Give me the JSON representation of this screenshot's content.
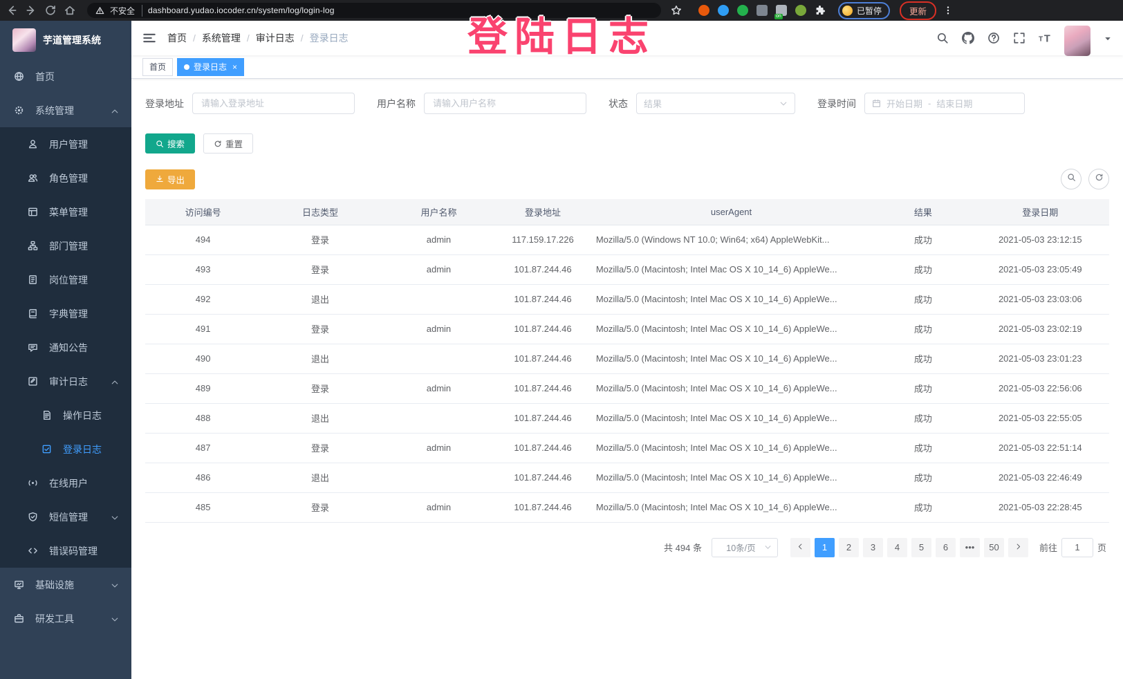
{
  "browser": {
    "security_label": "不安全",
    "url": "dashboard.yudao.iocoder.cn/system/log/login-log",
    "paused_badge": "已暂停",
    "update_button": "更新",
    "extensions": [
      {
        "name": "extension-orange-icon",
        "color": "#e8590c",
        "shape": "circle"
      },
      {
        "name": "extension-blue-gem-icon",
        "color": "#2f9df4",
        "shape": "circle"
      },
      {
        "name": "extension-green-heart-icon",
        "color": "#23b14d",
        "shape": "circle"
      },
      {
        "name": "extension-grey-badge-icon",
        "color": "#7d8590",
        "shape": "square"
      },
      {
        "name": "extension-list-icon",
        "color": "#aeb4bc",
        "shape": "square",
        "badge": "on"
      },
      {
        "name": "extension-leaf-icon",
        "color": "#79a83a",
        "shape": "circle"
      },
      {
        "name": "extension-puzzle-icon",
        "color": "#e8eaed",
        "shape": "puzzle"
      }
    ]
  },
  "overlay": {
    "text": "登陆日志"
  },
  "sidebar": {
    "title": "芋道管理系统",
    "menu": [
      {
        "label": "首页",
        "icon": "dashboard-icon",
        "level": 0
      },
      {
        "label": "系统管理",
        "icon": "gear-icon",
        "level": 0,
        "arrow": "up"
      },
      {
        "label": "用户管理",
        "icon": "user-icon",
        "level": 1
      },
      {
        "label": "角色管理",
        "icon": "roles-icon",
        "level": 1
      },
      {
        "label": "菜单管理",
        "icon": "menu-tree-icon",
        "level": 1
      },
      {
        "label": "部门管理",
        "icon": "dept-icon",
        "level": 1
      },
      {
        "label": "岗位管理",
        "icon": "post-icon",
        "level": 1
      },
      {
        "label": "字典管理",
        "icon": "dict-icon",
        "level": 1
      },
      {
        "label": "通知公告",
        "icon": "notice-icon",
        "level": 1
      },
      {
        "label": "审计日志",
        "icon": "audit-log-icon",
        "level": 1,
        "arrow": "up"
      },
      {
        "label": "操作日志",
        "icon": "operate-log-icon",
        "level": 2
      },
      {
        "label": "登录日志",
        "icon": "login-log-icon",
        "level": 2,
        "active": true
      },
      {
        "label": "在线用户",
        "icon": "online-user-icon",
        "level": 1
      },
      {
        "label": "短信管理",
        "icon": "sms-icon",
        "level": 1,
        "arrow": "down"
      },
      {
        "label": "错误码管理",
        "icon": "error-code-icon",
        "level": 1
      },
      {
        "label": "基础设施",
        "icon": "infra-icon",
        "level": 0,
        "arrow": "down"
      },
      {
        "label": "研发工具",
        "icon": "devtool-icon",
        "level": 0,
        "arrow": "down"
      }
    ]
  },
  "breadcrumb": {
    "items": [
      "首页",
      "系统管理",
      "审计日志",
      "登录日志"
    ],
    "separator": "/"
  },
  "tags": [
    {
      "label": "首页",
      "active": false,
      "closable": false
    },
    {
      "label": "登录日志",
      "active": true,
      "closable": true
    }
  ],
  "filters": {
    "login_address": {
      "label": "登录地址",
      "placeholder": "请输入登录地址"
    },
    "username": {
      "label": "用户名称",
      "placeholder": "请输入用户名称"
    },
    "status": {
      "label": "状态",
      "placeholder": "结果"
    },
    "login_time": {
      "label": "登录时间",
      "start_placeholder": "开始日期",
      "separator": "-",
      "end_placeholder": "结束日期"
    }
  },
  "actions": {
    "search": "搜索",
    "reset": "重置",
    "export": "导出"
  },
  "table": {
    "columns": [
      "访问编号",
      "日志类型",
      "用户名称",
      "登录地址",
      "userAgent",
      "结果",
      "登录日期"
    ],
    "rows": [
      [
        "494",
        "登录",
        "admin",
        "117.159.17.226",
        "Mozilla/5.0 (Windows NT 10.0; Win64; x64) AppleWebKit...",
        "成功",
        "2021-05-03 23:12:15"
      ],
      [
        "493",
        "登录",
        "admin",
        "101.87.244.46",
        "Mozilla/5.0 (Macintosh; Intel Mac OS X 10_14_6) AppleWe...",
        "成功",
        "2021-05-03 23:05:49"
      ],
      [
        "492",
        "退出",
        "",
        "101.87.244.46",
        "Mozilla/5.0 (Macintosh; Intel Mac OS X 10_14_6) AppleWe...",
        "成功",
        "2021-05-03 23:03:06"
      ],
      [
        "491",
        "登录",
        "admin",
        "101.87.244.46",
        "Mozilla/5.0 (Macintosh; Intel Mac OS X 10_14_6) AppleWe...",
        "成功",
        "2021-05-03 23:02:19"
      ],
      [
        "490",
        "退出",
        "",
        "101.87.244.46",
        "Mozilla/5.0 (Macintosh; Intel Mac OS X 10_14_6) AppleWe...",
        "成功",
        "2021-05-03 23:01:23"
      ],
      [
        "489",
        "登录",
        "admin",
        "101.87.244.46",
        "Mozilla/5.0 (Macintosh; Intel Mac OS X 10_14_6) AppleWe...",
        "成功",
        "2021-05-03 22:56:06"
      ],
      [
        "488",
        "退出",
        "",
        "101.87.244.46",
        "Mozilla/5.0 (Macintosh; Intel Mac OS X 10_14_6) AppleWe...",
        "成功",
        "2021-05-03 22:55:05"
      ],
      [
        "487",
        "登录",
        "admin",
        "101.87.244.46",
        "Mozilla/5.0 (Macintosh; Intel Mac OS X 10_14_6) AppleWe...",
        "成功",
        "2021-05-03 22:51:14"
      ],
      [
        "486",
        "退出",
        "",
        "101.87.244.46",
        "Mozilla/5.0 (Macintosh; Intel Mac OS X 10_14_6) AppleWe...",
        "成功",
        "2021-05-03 22:46:49"
      ],
      [
        "485",
        "登录",
        "admin",
        "101.87.244.46",
        "Mozilla/5.0 (Macintosh; Intel Mac OS X 10_14_6) AppleWe...",
        "成功",
        "2021-05-03 22:28:45"
      ]
    ]
  },
  "pagination": {
    "total": "共 494 条",
    "page_size": "10条/页",
    "pages": [
      "1",
      "2",
      "3",
      "4",
      "5",
      "6",
      "•••",
      "50"
    ],
    "active_page": "1",
    "goto_label": "前往",
    "goto_value": "1",
    "goto_suffix": "页"
  },
  "colors": {
    "accent": "#409eff",
    "search_button": "#12a78c",
    "export_button": "#efa93c",
    "overlay": "#fa436f"
  }
}
